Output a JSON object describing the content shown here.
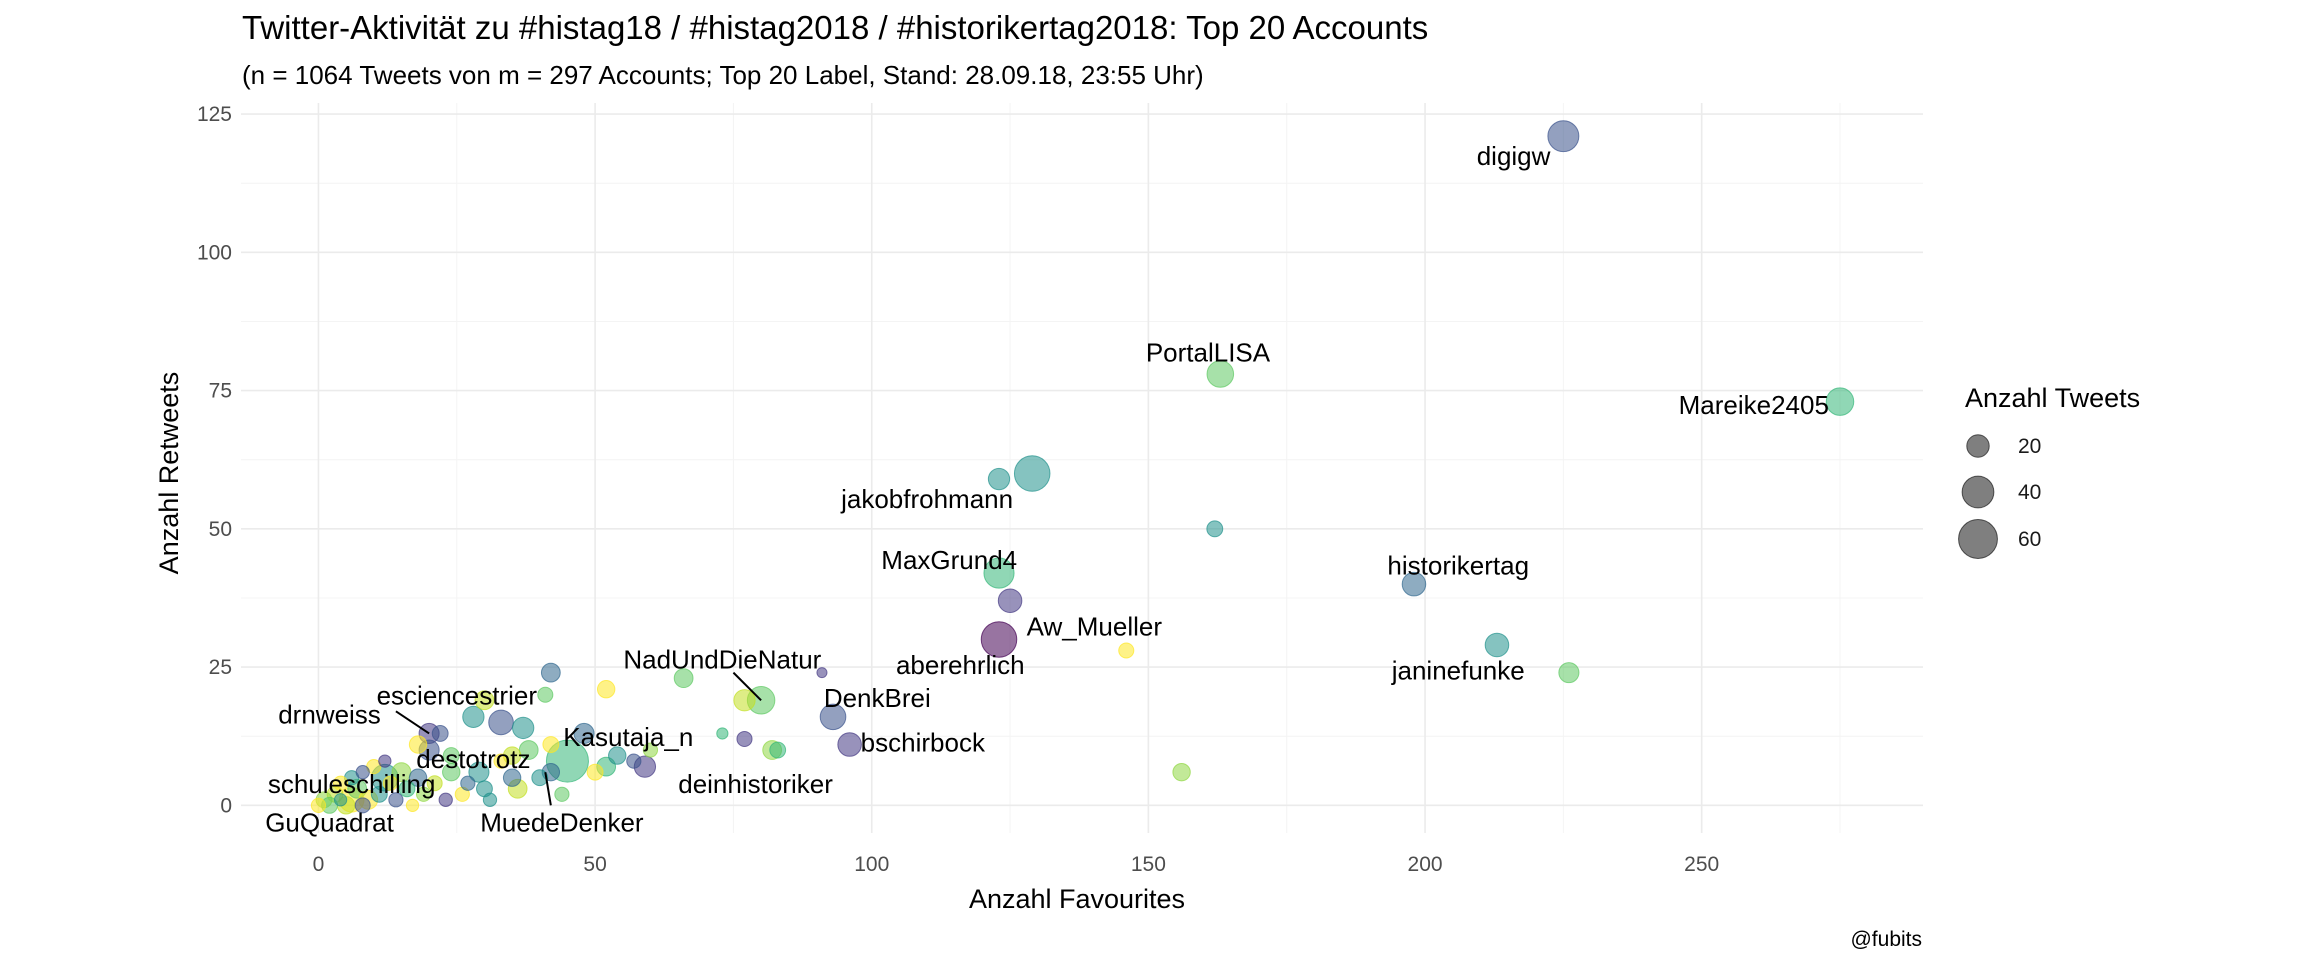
{
  "chart_data": {
    "type": "scatter",
    "title": "Twitter-Aktivität zu #histag18 / #histag2018 / #historikertag2018: Top 20 Accounts",
    "subtitle": "(n = 1064 Tweets von m = 297 Accounts; Top 20 Label, Stand: 28.09.18, 23:55 Uhr)",
    "xlabel": "Anzahl Favourites",
    "ylabel": "Anzahl Retweets",
    "caption": "@fubits",
    "xlim": [
      -14,
      290
    ],
    "ylim": [
      -5,
      127
    ],
    "x_ticks": [
      0,
      50,
      100,
      150,
      200,
      250
    ],
    "y_ticks": [
      0,
      25,
      50,
      75,
      100,
      125
    ],
    "x_tick_labels": [
      "0",
      "50",
      "100",
      "150",
      "200",
      "250"
    ],
    "y_tick_labels": [
      "0",
      "25",
      "50",
      "75",
      "100",
      "125"
    ],
    "grid": true,
    "legend": {
      "title": "Anzahl Tweets",
      "position": "right",
      "entries": [
        {
          "label": "20",
          "value": 20
        },
        {
          "label": "40",
          "value": 40
        },
        {
          "label": "60",
          "value": 60
        }
      ]
    },
    "palette": [
      "#440154",
      "#3b528b",
      "#21918c",
      "#5ec962",
      "#fde725"
    ],
    "points": [
      {
        "name": "digigw",
        "x": 225,
        "y": 121,
        "tweets": 38,
        "color": "#3b528b"
      },
      {
        "name": "PortalLISA",
        "x": 163,
        "y": 78,
        "tweets": 28,
        "color": "#5ec962"
      },
      {
        "name": "Mareike2405",
        "x": 275,
        "y": 73,
        "tweets": 30,
        "color": "#35b779"
      },
      {
        "name": "jakobfrohmann",
        "x": 129,
        "y": 60,
        "tweets": 50,
        "color": "#21918c"
      },
      {
        "name": "",
        "x": 123,
        "y": 59,
        "tweets": 18,
        "color": "#21918c"
      },
      {
        "name": "",
        "x": 162,
        "y": 50,
        "tweets": 10,
        "color": "#21918c"
      },
      {
        "name": "MaxGrund4",
        "x": 123,
        "y": 42,
        "tweets": 36,
        "color": "#35b779"
      },
      {
        "name": "historikertag",
        "x": 198,
        "y": 40,
        "tweets": 22,
        "color": "#31688e"
      },
      {
        "name": "Aw_Mueller",
        "x": 125,
        "y": 37,
        "tweets": 22,
        "color": "#443983"
      },
      {
        "name": "aberehrlich",
        "x": 123,
        "y": 30,
        "tweets": 50,
        "color": "#440154"
      },
      {
        "name": "janinefunke",
        "x": 213,
        "y": 29,
        "tweets": 22,
        "color": "#21918c"
      },
      {
        "name": "",
        "x": 226,
        "y": 24,
        "tweets": 16,
        "color": "#5ec962"
      },
      {
        "name": "",
        "x": 146,
        "y": 28,
        "tweets": 9,
        "color": "#fde725"
      },
      {
        "name": "",
        "x": 156,
        "y": 6,
        "tweets": 12,
        "color": "#90d743"
      },
      {
        "name": "NadUndDieNatur",
        "x": 80,
        "y": 19,
        "tweets": 30,
        "color": "#5ec962"
      },
      {
        "name": "",
        "x": 77,
        "y": 19,
        "tweets": 18,
        "color": "#c2df23"
      },
      {
        "name": "",
        "x": 91,
        "y": 24,
        "tweets": 4,
        "color": "#443983"
      },
      {
        "name": "DenkBrei",
        "x": 93,
        "y": 16,
        "tweets": 26,
        "color": "#3b528b"
      },
      {
        "name": "bschirbock",
        "x": 96,
        "y": 11,
        "tweets": 22,
        "color": "#443983"
      },
      {
        "name": "",
        "x": 66,
        "y": 23,
        "tweets": 14,
        "color": "#5ec962"
      },
      {
        "name": "",
        "x": 82,
        "y": 10,
        "tweets": 14,
        "color": "#90d743"
      },
      {
        "name": "",
        "x": 83,
        "y": 10,
        "tweets": 10,
        "color": "#35b779"
      },
      {
        "name": "",
        "x": 77,
        "y": 12,
        "tweets": 9,
        "color": "#443983"
      },
      {
        "name": "",
        "x": 73,
        "y": 13,
        "tweets": 5,
        "color": "#35b779"
      },
      {
        "name": "esciencestrier",
        "x": 42,
        "y": 24,
        "tweets": 14,
        "color": "#31688e"
      },
      {
        "name": "",
        "x": 52,
        "y": 21,
        "tweets": 12,
        "color": "#fde725"
      },
      {
        "name": "",
        "x": 41,
        "y": 20,
        "tweets": 9,
        "color": "#5ec962"
      },
      {
        "name": "",
        "x": 30,
        "y": 19,
        "tweets": 14,
        "color": "#c2df23"
      },
      {
        "name": "",
        "x": 28,
        "y": 16,
        "tweets": 18,
        "color": "#21918c"
      },
      {
        "name": "",
        "x": 33,
        "y": 15,
        "tweets": 24,
        "color": "#3b528b"
      },
      {
        "name": "",
        "x": 37,
        "y": 14,
        "tweets": 18,
        "color": "#21918c"
      },
      {
        "name": "Kasutaja_n",
        "x": 45,
        "y": 8,
        "tweets": 70,
        "color": "#35b779"
      },
      {
        "name": "",
        "x": 48,
        "y": 13,
        "tweets": 16,
        "color": "#31688e"
      },
      {
        "name": "",
        "x": 38,
        "y": 10,
        "tweets": 14,
        "color": "#5ec962"
      },
      {
        "name": "",
        "x": 35,
        "y": 9,
        "tweets": 12,
        "color": "#c2df23"
      },
      {
        "name": "",
        "x": 42,
        "y": 11,
        "tweets": 10,
        "color": "#fde725"
      },
      {
        "name": "",
        "x": 54,
        "y": 9,
        "tweets": 12,
        "color": "#21918c"
      },
      {
        "name": "",
        "x": 60,
        "y": 10,
        "tweets": 8,
        "color": "#90d743"
      },
      {
        "name": "deinhistoriker",
        "x": 59,
        "y": 7,
        "tweets": 18,
        "color": "#443983"
      },
      {
        "name": "",
        "x": 52,
        "y": 7,
        "tweets": 14,
        "color": "#35b779"
      },
      {
        "name": "",
        "x": 57,
        "y": 8,
        "tweets": 8,
        "color": "#3b528b"
      },
      {
        "name": "",
        "x": 50,
        "y": 6,
        "tweets": 10,
        "color": "#fde725"
      },
      {
        "name": "",
        "x": 35,
        "y": 5,
        "tweets": 12,
        "color": "#31688e"
      },
      {
        "name": "",
        "x": 36,
        "y": 3,
        "tweets": 14,
        "color": "#c2df23"
      },
      {
        "name": "",
        "x": 30,
        "y": 3,
        "tweets": 10,
        "color": "#21918c"
      },
      {
        "name": "",
        "x": 40,
        "y": 5,
        "tweets": 10,
        "color": "#21918c"
      },
      {
        "name": "MuedeDenker",
        "x": 42,
        "y": 6,
        "tweets": 12,
        "color": "#31688e"
      },
      {
        "name": "",
        "x": 29,
        "y": 6,
        "tweets": 16,
        "color": "#21918c"
      },
      {
        "name": "drnweiss",
        "x": 20,
        "y": 13,
        "tweets": 16,
        "color": "#443983"
      },
      {
        "name": "",
        "x": 22,
        "y": 13,
        "tweets": 10,
        "color": "#3b528b"
      },
      {
        "name": "destotrotz",
        "x": 20,
        "y": 10,
        "tweets": 16,
        "color": "#3b528b"
      },
      {
        "name": "",
        "x": 18,
        "y": 11,
        "tweets": 12,
        "color": "#fde725"
      },
      {
        "name": "",
        "x": 24,
        "y": 9,
        "tweets": 10,
        "color": "#5ec962"
      },
      {
        "name": "schuleschilling",
        "x": 12,
        "y": 5,
        "tweets": 28,
        "color": "#21918c"
      },
      {
        "name": "GuQuadrat",
        "x": 6,
        "y": 1,
        "tweets": 24,
        "color": "#fde725"
      },
      {
        "name": "",
        "x": 15,
        "y": 6,
        "tweets": 14,
        "color": "#90d743"
      },
      {
        "name": "",
        "x": 18,
        "y": 5,
        "tweets": 12,
        "color": "#31688e"
      },
      {
        "name": "",
        "x": 10,
        "y": 7,
        "tweets": 8,
        "color": "#fde725"
      },
      {
        "name": "",
        "x": 8,
        "y": 6,
        "tweets": 7,
        "color": "#3b528b"
      },
      {
        "name": "",
        "x": 12,
        "y": 8,
        "tweets": 6,
        "color": "#443983"
      },
      {
        "name": "",
        "x": 6,
        "y": 5,
        "tweets": 8,
        "color": "#21918c"
      },
      {
        "name": "",
        "x": 7,
        "y": 3,
        "tweets": 14,
        "color": "#5ec962"
      },
      {
        "name": "",
        "x": 3,
        "y": 2,
        "tweets": 10,
        "color": "#c2df23"
      },
      {
        "name": "",
        "x": 4,
        "y": 4,
        "tweets": 8,
        "color": "#fde725"
      },
      {
        "name": "",
        "x": 1,
        "y": 1,
        "tweets": 10,
        "color": "#90d743"
      },
      {
        "name": "",
        "x": 0,
        "y": 0,
        "tweets": 8,
        "color": "#fde725"
      },
      {
        "name": "",
        "x": 2,
        "y": 0,
        "tweets": 10,
        "color": "#5ec962"
      },
      {
        "name": "",
        "x": 5,
        "y": 0,
        "tweets": 12,
        "color": "#c2df23"
      },
      {
        "name": "",
        "x": 9,
        "y": 1,
        "tweets": 14,
        "color": "#fde725"
      },
      {
        "name": "",
        "x": 11,
        "y": 2,
        "tweets": 10,
        "color": "#21918c"
      },
      {
        "name": "",
        "x": 14,
        "y": 1,
        "tweets": 8,
        "color": "#3b528b"
      },
      {
        "name": "",
        "x": 16,
        "y": 3,
        "tweets": 10,
        "color": "#35b779"
      },
      {
        "name": "",
        "x": 19,
        "y": 2,
        "tweets": 8,
        "color": "#90d743"
      },
      {
        "name": "",
        "x": 21,
        "y": 4,
        "tweets": 9,
        "color": "#c2df23"
      },
      {
        "name": "",
        "x": 23,
        "y": 1,
        "tweets": 7,
        "color": "#443983"
      },
      {
        "name": "",
        "x": 24,
        "y": 6,
        "tweets": 12,
        "color": "#5ec962"
      },
      {
        "name": "",
        "x": 26,
        "y": 2,
        "tweets": 8,
        "color": "#fde725"
      },
      {
        "name": "",
        "x": 8,
        "y": 0,
        "tweets": 9,
        "color": "#3b528b"
      },
      {
        "name": "",
        "x": 13,
        "y": 4,
        "tweets": 8,
        "color": "#fde725"
      },
      {
        "name": "",
        "x": 4,
        "y": 1,
        "tweets": 6,
        "color": "#21918c"
      },
      {
        "name": "",
        "x": 17,
        "y": 0,
        "tweets": 6,
        "color": "#fde725"
      },
      {
        "name": "",
        "x": 27,
        "y": 4,
        "tweets": 8,
        "color": "#31688e"
      },
      {
        "name": "",
        "x": 31,
        "y": 1,
        "tweets": 7,
        "color": "#21918c"
      },
      {
        "name": "",
        "x": 33,
        "y": 8,
        "tweets": 8,
        "color": "#fde725"
      },
      {
        "name": "",
        "x": 44,
        "y": 2,
        "tweets": 8,
        "color": "#5ec962"
      }
    ],
    "labels": [
      {
        "text": "digigw",
        "x": 216,
        "y": 117,
        "anchor": "middle"
      },
      {
        "text": "PortalLISA",
        "x": 172,
        "y": 81.5,
        "anchor": "end"
      },
      {
        "text": "Mareike2405",
        "x": 273,
        "y": 72,
        "anchor": "end"
      },
      {
        "text": "jakobfrohmann",
        "x": 110,
        "y": 55,
        "anchor": "middle"
      },
      {
        "text": "MaxGrund4",
        "x": 114,
        "y": 44,
        "anchor": "middle"
      },
      {
        "text": "historikertag",
        "x": 206,
        "y": 43,
        "anchor": "middle"
      },
      {
        "text": "Aw_Mueller",
        "x": 128,
        "y": 32,
        "anchor": "start"
      },
      {
        "text": "aberehrlich",
        "x": 116,
        "y": 25,
        "anchor": "middle"
      },
      {
        "text": "janinefunke",
        "x": 206,
        "y": 24,
        "anchor": "middle"
      },
      {
        "text": "NadUndDieNatur",
        "x": 73,
        "y": 26,
        "anchor": "middle"
      },
      {
        "text": "DenkBrei",
        "x": 101,
        "y": 19,
        "anchor": "middle"
      },
      {
        "text": "bschirbock",
        "x": 98,
        "y": 11,
        "anchor": "start"
      },
      {
        "text": "esciencestrier",
        "x": 25,
        "y": 19.5,
        "anchor": "middle"
      },
      {
        "text": "drnweiss",
        "x": 2,
        "y": 16,
        "anchor": "middle"
      },
      {
        "text": "Kasutaja_n",
        "x": 56,
        "y": 12,
        "anchor": "middle"
      },
      {
        "text": "destotrotz",
        "x": 28,
        "y": 8,
        "anchor": "middle"
      },
      {
        "text": "deinhistoriker",
        "x": 79,
        "y": 3.5,
        "anchor": "middle"
      },
      {
        "text": "schuleschilling",
        "x": 6,
        "y": 3.5,
        "anchor": "middle"
      },
      {
        "text": "GuQuadrat",
        "x": 2,
        "y": -3.5,
        "anchor": "middle"
      },
      {
        "text": "MuedeDenker",
        "x": 44,
        "y": -3.5,
        "anchor": "middle"
      }
    ],
    "leader_lines": [
      {
        "from": [
          75,
          24
        ],
        "to": [
          80,
          19
        ]
      },
      {
        "from": [
          14,
          17
        ],
        "to": [
          20,
          13
        ]
      },
      {
        "from": [
          42,
          0
        ],
        "to": [
          41,
          6
        ]
      }
    ]
  }
}
